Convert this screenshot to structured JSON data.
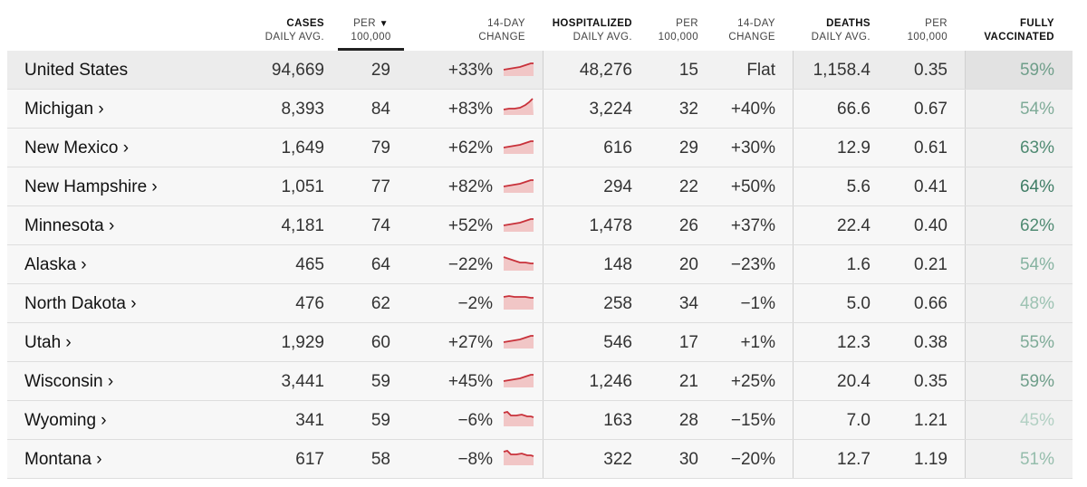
{
  "header": {
    "cases_title": "CASES",
    "cases_sub": "DAILY AVG.",
    "cases_per_top": "PER",
    "cases_per_sub": "100,000",
    "sort_arrow": "▼",
    "cases_change_top": "14-DAY",
    "cases_change_sub": "CHANGE",
    "hosp_title": "HOSPITALIZED",
    "hosp_sub": "DAILY AVG.",
    "hosp_per_top": "PER",
    "hosp_per_sub": "100,000",
    "hosp_change_top": "14-DAY",
    "hosp_change_sub": "CHANGE",
    "deaths_title": "DEATHS",
    "deaths_sub": "DAILY AVG.",
    "deaths_per_top": "PER",
    "deaths_per_sub": "100,000",
    "vax_top": "FULLY",
    "vax_sub": "VACCINATED"
  },
  "rows": [
    {
      "name": "United States",
      "cases": "94,669",
      "cases_per": "29",
      "cases_change": "+33%",
      "hosp": "48,276",
      "hosp_per": "15",
      "hosp_change": "Flat",
      "deaths": "1,158.4",
      "deaths_per": "0.35",
      "vax": "59%",
      "vax_color": "#6f9e8a",
      "trend": "up"
    },
    {
      "name": "Michigan ›",
      "cases": "8,393",
      "cases_per": "84",
      "cases_change": "+83%",
      "hosp": "3,224",
      "hosp_per": "32",
      "hosp_change": "+40%",
      "deaths": "66.6",
      "deaths_per": "0.67",
      "vax": "54%",
      "vax_color": "#7fab98",
      "trend": "upsteep"
    },
    {
      "name": "New Mexico ›",
      "cases": "1,649",
      "cases_per": "79",
      "cases_change": "+62%",
      "hosp": "616",
      "hosp_per": "29",
      "hosp_change": "+30%",
      "deaths": "12.9",
      "deaths_per": "0.61",
      "vax": "63%",
      "vax_color": "#4f8a72",
      "trend": "up"
    },
    {
      "name": "New Hampshire ›",
      "cases": "1,051",
      "cases_per": "77",
      "cases_change": "+82%",
      "hosp": "294",
      "hosp_per": "22",
      "hosp_change": "+50%",
      "deaths": "5.6",
      "deaths_per": "0.41",
      "vax": "64%",
      "vax_color": "#3f7d66",
      "trend": "up"
    },
    {
      "name": "Minnesota ›",
      "cases": "4,181",
      "cases_per": "74",
      "cases_change": "+52%",
      "hosp": "1,478",
      "hosp_per": "26",
      "hosp_change": "+37%",
      "deaths": "22.4",
      "deaths_per": "0.40",
      "vax": "62%",
      "vax_color": "#4f8a72",
      "trend": "up"
    },
    {
      "name": "Alaska ›",
      "cases": "465",
      "cases_per": "64",
      "cases_change": "−22%",
      "hosp": "148",
      "hosp_per": "20",
      "hosp_change": "−23%",
      "deaths": "1.6",
      "deaths_per": "0.21",
      "vax": "54%",
      "vax_color": "#86b3a1",
      "trend": "down"
    },
    {
      "name": "North Dakota ›",
      "cases": "476",
      "cases_per": "62",
      "cases_change": "−2%",
      "hosp": "258",
      "hosp_per": "34",
      "hosp_change": "−1%",
      "deaths": "5.0",
      "deaths_per": "0.66",
      "vax": "48%",
      "vax_color": "#9cc2b2",
      "trend": "flat"
    },
    {
      "name": "Utah ›",
      "cases": "1,929",
      "cases_per": "60",
      "cases_change": "+27%",
      "hosp": "546",
      "hosp_per": "17",
      "hosp_change": "+1%",
      "deaths": "12.3",
      "deaths_per": "0.38",
      "vax": "55%",
      "vax_color": "#7fab98",
      "trend": "up"
    },
    {
      "name": "Wisconsin ›",
      "cases": "3,441",
      "cases_per": "59",
      "cases_change": "+45%",
      "hosp": "1,246",
      "hosp_per": "21",
      "hosp_change": "+25%",
      "deaths": "20.4",
      "deaths_per": "0.35",
      "vax": "59%",
      "vax_color": "#6f9e8a",
      "trend": "up"
    },
    {
      "name": "Wyoming ›",
      "cases": "341",
      "cases_per": "59",
      "cases_change": "−6%",
      "hosp": "163",
      "hosp_per": "28",
      "hosp_change": "−15%",
      "deaths": "7.0",
      "deaths_per": "1.21",
      "vax": "45%",
      "vax_color": "#b2d0c3",
      "trend": "downsmall"
    },
    {
      "name": "Montana ›",
      "cases": "617",
      "cases_per": "58",
      "cases_change": "−8%",
      "hosp": "322",
      "hosp_per": "30",
      "hosp_change": "−20%",
      "deaths": "12.7",
      "deaths_per": "1.19",
      "vax": "51%",
      "vax_color": "#95bdac",
      "trend": "downsmall"
    }
  ]
}
